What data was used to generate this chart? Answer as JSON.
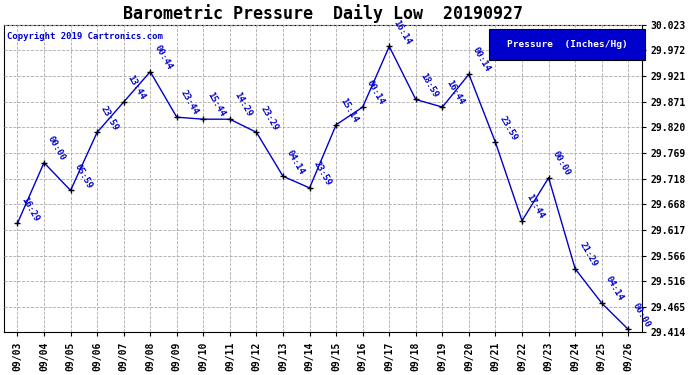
{
  "title": "Barometric Pressure  Daily Low  20190927",
  "copyright": "Copyright 2019 Cartronics.com",
  "legend_label": "Pressure  (Inches/Hg)",
  "ylim": [
    29.414,
    30.023
  ],
  "yticks": [
    29.414,
    29.465,
    29.516,
    29.566,
    29.617,
    29.668,
    29.718,
    29.769,
    29.82,
    29.871,
    29.921,
    29.972,
    30.023
  ],
  "dates": [
    "09/03",
    "09/04",
    "09/05",
    "09/06",
    "09/07",
    "09/08",
    "09/09",
    "09/10",
    "09/11",
    "09/12",
    "09/13",
    "09/14",
    "09/15",
    "09/16",
    "09/17",
    "09/18",
    "09/19",
    "09/20",
    "09/21",
    "09/22",
    "09/23",
    "09/24",
    "09/25",
    "09/26"
  ],
  "values": [
    29.63,
    29.75,
    29.695,
    29.81,
    29.87,
    29.93,
    29.84,
    29.836,
    29.836,
    29.81,
    29.723,
    29.7,
    29.825,
    29.86,
    29.98,
    29.875,
    29.86,
    29.925,
    29.79,
    29.635,
    29.72,
    29.54,
    29.472,
    29.42
  ],
  "time_labels": [
    "16:29",
    "00:00",
    "05:59",
    "23:59",
    "13:44",
    "00:44",
    "23:44",
    "15:44",
    "14:29",
    "23:29",
    "04:14",
    "23:59",
    "15:14",
    "00:14",
    "16:14",
    "18:59",
    "16:44",
    "00:14",
    "23:59",
    "17:44",
    "00:00",
    "21:29",
    "04:14",
    "00:00"
  ],
  "line_color": "#0000cc",
  "bg_color": "#ffffff",
  "grid_color": "#aaaaaa",
  "legend_bg": "#0000cc",
  "legend_text_color": "#ffffff",
  "title_fontsize": 12,
  "annotation_fontsize": 6.5,
  "tick_fontsize": 7
}
